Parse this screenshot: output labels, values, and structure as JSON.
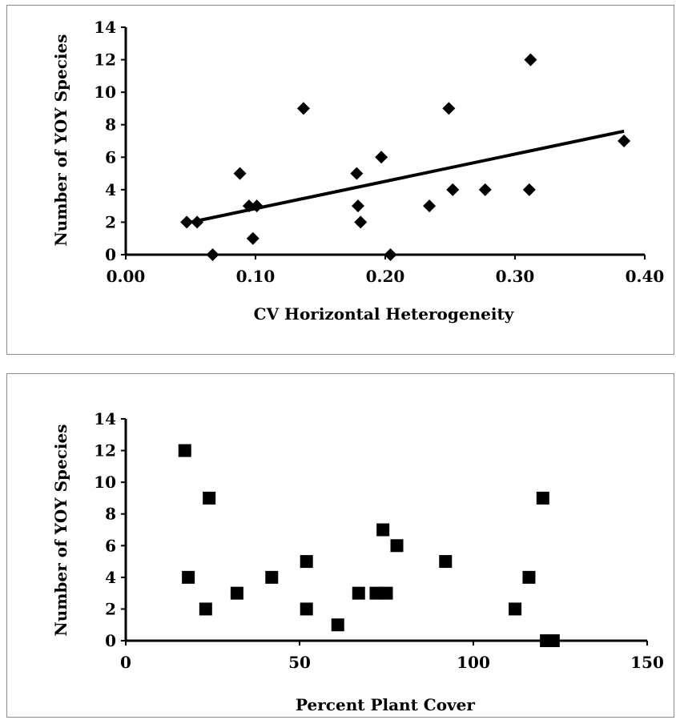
{
  "chart_data": [
    {
      "type": "scatter",
      "title": "",
      "xlabel": "CV Horizontal Heterogeneity",
      "ylabel": "Number of YOY Species",
      "xlim": [
        0,
        0.4
      ],
      "ylim": [
        0,
        14
      ],
      "xticks": [
        "0.00",
        "0.10",
        "0.20",
        "0.30",
        "0.40"
      ],
      "yticks": [
        "0",
        "2",
        "4",
        "6",
        "8",
        "10",
        "12",
        "14"
      ],
      "marker": "diamond",
      "color": "#000000",
      "grid": false,
      "legend": "none",
      "points": [
        {
          "x": 0.047,
          "y": 2
        },
        {
          "x": 0.055,
          "y": 2
        },
        {
          "x": 0.067,
          "y": 0
        },
        {
          "x": 0.088,
          "y": 5
        },
        {
          "x": 0.095,
          "y": 3
        },
        {
          "x": 0.098,
          "y": 1
        },
        {
          "x": 0.101,
          "y": 3
        },
        {
          "x": 0.137,
          "y": 9
        },
        {
          "x": 0.178,
          "y": 5
        },
        {
          "x": 0.179,
          "y": 3
        },
        {
          "x": 0.181,
          "y": 2
        },
        {
          "x": 0.197,
          "y": 6
        },
        {
          "x": 0.204,
          "y": 0
        },
        {
          "x": 0.234,
          "y": 3
        },
        {
          "x": 0.249,
          "y": 9
        },
        {
          "x": 0.252,
          "y": 4
        },
        {
          "x": 0.277,
          "y": 4
        },
        {
          "x": 0.311,
          "y": 4
        },
        {
          "x": 0.312,
          "y": 12
        },
        {
          "x": 0.384,
          "y": 7
        }
      ],
      "trendline": {
        "type": "linear",
        "x": [
          0.047,
          0.384
        ],
        "y": [
          1.95,
          7.6
        ]
      }
    },
    {
      "type": "scatter",
      "title": "",
      "xlabel": "Percent Plant Cover",
      "ylabel": "Number of YOY Species",
      "xlim": [
        0,
        150
      ],
      "ylim": [
        0,
        14
      ],
      "xticks": [
        "0",
        "50",
        "100",
        "150"
      ],
      "yticks": [
        "0",
        "2",
        "4",
        "6",
        "8",
        "10",
        "12",
        "14"
      ],
      "marker": "square",
      "color": "#000000",
      "grid": false,
      "legend": "none",
      "points": [
        {
          "x": 17,
          "y": 12
        },
        {
          "x": 18,
          "y": 4
        },
        {
          "x": 23,
          "y": 2
        },
        {
          "x": 24,
          "y": 9
        },
        {
          "x": 32,
          "y": 3
        },
        {
          "x": 42,
          "y": 4
        },
        {
          "x": 52,
          "y": 5
        },
        {
          "x": 52,
          "y": 2
        },
        {
          "x": 61,
          "y": 1
        },
        {
          "x": 67,
          "y": 3
        },
        {
          "x": 72,
          "y": 3
        },
        {
          "x": 74,
          "y": 7
        },
        {
          "x": 75,
          "y": 3
        },
        {
          "x": 78,
          "y": 6
        },
        {
          "x": 92,
          "y": 5
        },
        {
          "x": 112,
          "y": 2
        },
        {
          "x": 116,
          "y": 4
        },
        {
          "x": 120,
          "y": 9
        },
        {
          "x": 121,
          "y": 0
        },
        {
          "x": 123,
          "y": 0
        }
      ]
    }
  ]
}
